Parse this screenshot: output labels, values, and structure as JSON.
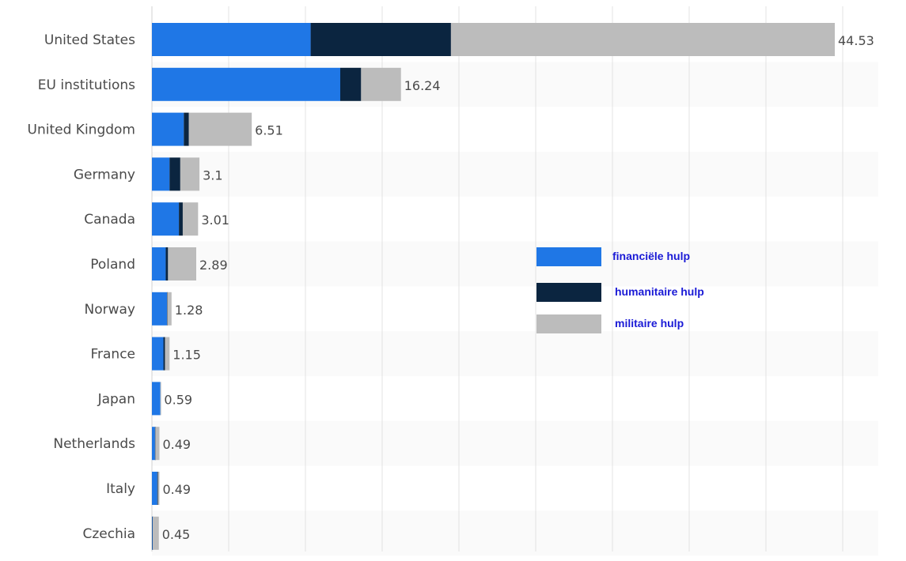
{
  "chart_data": {
    "type": "bar",
    "orientation": "horizontal",
    "stacked": true,
    "title": "",
    "xlabel": "",
    "ylabel": "",
    "xlim": [
      0,
      45
    ],
    "grid": true,
    "legend_position": "right-middle",
    "categories": [
      "United States",
      "EU institutions",
      "United Kingdom",
      "Germany",
      "Canada",
      "Poland",
      "Norway",
      "France",
      "Japan",
      "Netherlands",
      "Italy",
      "Czechia"
    ],
    "totals_labels": [
      "44.53",
      "16.24",
      "6.51",
      "3.1",
      "3.01",
      "2.89",
      "1.28",
      "1.15",
      "0.59",
      "0.49",
      "0.49",
      "0.45"
    ],
    "series": [
      {
        "name": "financiële hulp",
        "color": "#1f77e6",
        "values": [
          10.35,
          12.28,
          2.08,
          1.15,
          1.76,
          0.9,
          0.98,
          0.75,
          0.55,
          0.2,
          0.35,
          0.03
        ]
      },
      {
        "name": "humanitaire hulp",
        "color": "#0b2540",
        "values": [
          9.15,
          1.36,
          0.33,
          0.7,
          0.25,
          0.15,
          0.02,
          0.1,
          0.0,
          0.02,
          0.04,
          0.02
        ]
      },
      {
        "name": "militaire hulp",
        "color": "#bcbcbc",
        "values": [
          25.03,
          2.6,
          4.1,
          1.25,
          1.0,
          1.84,
          0.28,
          0.3,
          0.04,
          0.27,
          0.1,
          0.4
        ]
      }
    ],
    "legend": [
      {
        "label": "financiële hulp",
        "color": "#1f77e6"
      },
      {
        "label": "humanitaire hulp",
        "color": "#0b2540"
      },
      {
        "label": "militaire hulp",
        "color": "#bcbcbc"
      }
    ]
  }
}
